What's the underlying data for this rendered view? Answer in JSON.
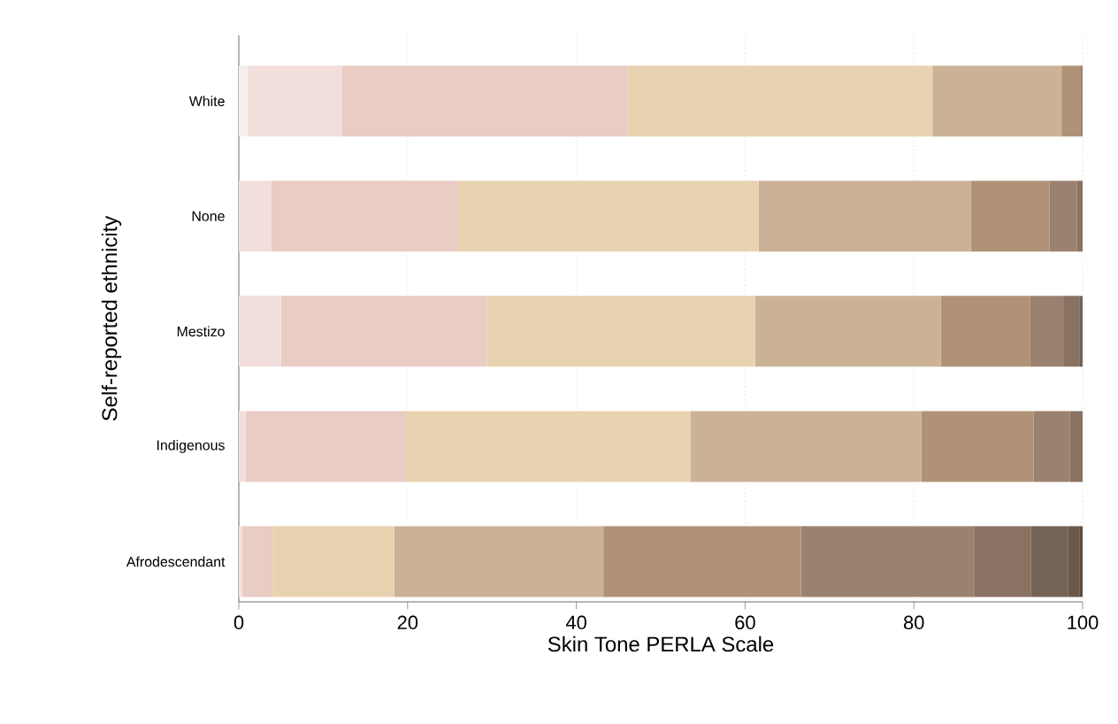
{
  "chart_data": {
    "type": "bar",
    "orientation": "horizontal",
    "stacked": true,
    "xlabel": "Skin Tone PERLA Scale",
    "ylabel": "Self-reported ethnicity",
    "categories": [
      "White",
      "None",
      "Mestizo",
      "Indigenous",
      "Afrodescendant"
    ],
    "series": [
      {
        "color": "#f5efed",
        "values": [
          1.0,
          0,
          0,
          0,
          0
        ]
      },
      {
        "color": "#f2dfdc",
        "values": [
          11.2,
          3.8,
          5.0,
          0.8,
          0.4
        ]
      },
      {
        "color": "#e9ccc4",
        "values": [
          34.0,
          22.3,
          24.4,
          19.0,
          3.6
        ]
      },
      {
        "color": "#e8d3b0",
        "values": [
          36.0,
          35.5,
          31.8,
          33.7,
          14.4
        ]
      },
      {
        "color": "#cbb297",
        "values": [
          15.3,
          25.2,
          22.0,
          27.4,
          24.8
        ]
      },
      {
        "color": "#b09276",
        "values": [
          2.2,
          9.3,
          10.6,
          13.3,
          23.4
        ]
      },
      {
        "color": "#9b8270",
        "values": [
          0.3,
          3.2,
          3.9,
          4.3,
          20.6
        ]
      },
      {
        "color": "#8a7262",
        "values": [
          0,
          0.7,
          1.9,
          1.5,
          6.7
        ]
      },
      {
        "color": "#736256",
        "values": [
          0,
          0,
          0.4,
          0,
          4.4
        ]
      },
      {
        "color": "#6b5a48",
        "values": [
          0,
          0,
          0,
          0,
          1.3
        ]
      },
      {
        "color": "#5e4d3d",
        "values": [
          0,
          0,
          0,
          0,
          0.4
        ]
      }
    ],
    "xlim": [
      0,
      100
    ],
    "xticks": [
      0,
      20,
      40,
      60,
      80,
      100
    ],
    "grid": "x"
  }
}
